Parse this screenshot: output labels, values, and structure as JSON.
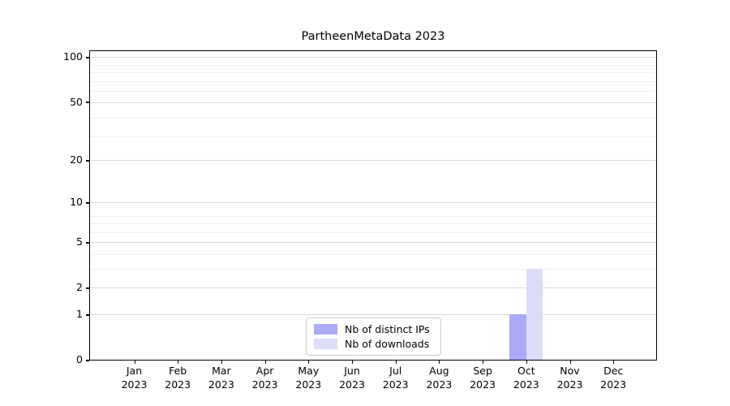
{
  "title": "PartheenMetaData 2023",
  "legend": {
    "items": [
      {
        "label": "Nb of distinct IPs",
        "color": "#aaaaf7"
      },
      {
        "label": "Nb of downloads",
        "color": "#dcdcf8"
      }
    ]
  },
  "y_axis": {
    "major_ticks": [
      100,
      50,
      20,
      10,
      5,
      2,
      1,
      0
    ],
    "minor_gridlines": [
      89,
      79,
      69,
      59,
      39,
      29,
      8,
      7,
      6,
      4,
      3
    ]
  },
  "x_axis": {
    "categories": [
      "Jan 2023",
      "Feb 2023",
      "Mar 2023",
      "Apr 2023",
      "May 2023",
      "Jun 2023",
      "Jul 2023",
      "Aug 2023",
      "Sep 2023",
      "Oct 2023",
      "Nov 2023",
      "Dec 2023"
    ]
  },
  "colors": {
    "background": "#ffffff",
    "axis": "#000000",
    "grid_major": "#d9d9d9",
    "grid_minor": "#efefef",
    "legend_border": "#cccccc",
    "bar_distinct_ips": "#aaaaf7",
    "bar_downloads": "#dcdcf8"
  },
  "chart_data": {
    "type": "bar",
    "title": "PartheenMetaData 2023",
    "categories": [
      "Jan 2023",
      "Feb 2023",
      "Mar 2023",
      "Apr 2023",
      "May 2023",
      "Jun 2023",
      "Jul 2023",
      "Aug 2023",
      "Sep 2023",
      "Oct 2023",
      "Nov 2023",
      "Dec 2023"
    ],
    "series": [
      {
        "name": "Nb of distinct IPs",
        "color": "#aaaaf7",
        "values": [
          0,
          0,
          0,
          0,
          0,
          0,
          0,
          0,
          0,
          1,
          0,
          0
        ]
      },
      {
        "name": "Nb of downloads",
        "color": "#dcdcf8",
        "values": [
          0,
          0,
          0,
          0,
          0,
          0,
          0,
          0,
          0,
          3,
          0,
          0
        ]
      }
    ],
    "xlabel": "",
    "ylabel": "",
    "yscale": "log1p",
    "ylim": [
      0,
      111
    ],
    "y_ticks": [
      100,
      50,
      20,
      10,
      5,
      2,
      1,
      0
    ],
    "grid": "y",
    "legend_position": "lower center"
  }
}
